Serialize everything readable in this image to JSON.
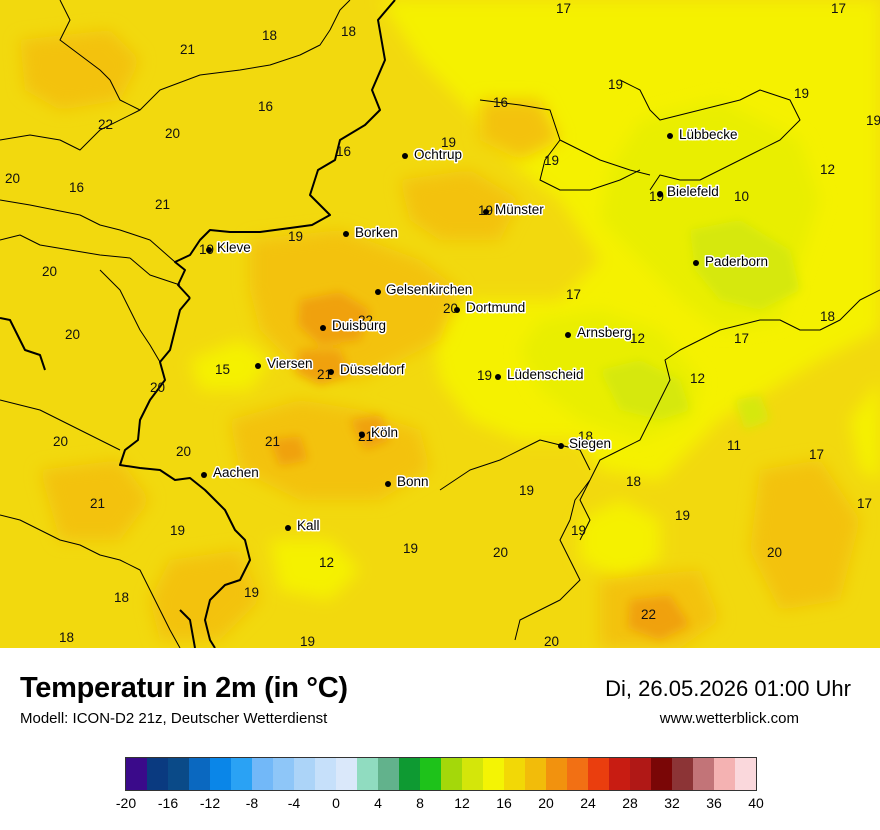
{
  "title": "Temperatur in 2m (in °C)",
  "subtitle": "Modell: ICON-D2 21z, Deutscher Wetterdienst",
  "datetime": "Di, 26.05.2026 01:00 Uhr",
  "website": "www.wetterblick.com",
  "colors": {
    "base": "#f2d90e",
    "warm": "#f3c20c",
    "hot": "#f0a10a",
    "cool": "#f5f104",
    "cooler": "#e9ee06",
    "coldest": "#d6e80a"
  },
  "cities": [
    {
      "name": "Lübbecke"
    },
    {
      "name": "Ochtrup"
    },
    {
      "name": "Bielefeld"
    },
    {
      "name": "Münster"
    },
    {
      "name": "Borken"
    },
    {
      "name": "Kleve"
    },
    {
      "name": "Paderborn"
    },
    {
      "name": "Gelsenkirchen"
    },
    {
      "name": "Dortmund"
    },
    {
      "name": "Duisburg"
    },
    {
      "name": "Arnsberg"
    },
    {
      "name": "Viersen"
    },
    {
      "name": "Düsseldorf"
    },
    {
      "name": "Lüdenscheid"
    },
    {
      "name": "Köln"
    },
    {
      "name": "Siegen"
    },
    {
      "name": "Aachen"
    },
    {
      "name": "Bonn"
    },
    {
      "name": "Kall"
    }
  ],
  "values": [
    "17",
    "17",
    "21",
    "18",
    "18",
    "19",
    "19",
    "19",
    "22",
    "16",
    "16",
    "20",
    "19",
    "19",
    "16",
    "12",
    "20",
    "16",
    "21",
    "19",
    "10",
    "19",
    "19",
    "20",
    "17",
    "20",
    "22",
    "18",
    "20",
    "12",
    "17",
    "15",
    "21",
    "19",
    "12",
    "20",
    "21",
    "18",
    "20",
    "11",
    "17",
    "21",
    "18",
    "19",
    "17",
    "19",
    "19",
    "12",
    "20",
    "20",
    "19",
    "18",
    "19",
    "22",
    "18",
    "19",
    "20"
  ],
  "legend": {
    "colors": [
      "#3a0a8a",
      "#0a3a80",
      "#0a4a88",
      "#0a68c0",
      "#0a86e8",
      "#2aa2f4",
      "#72b8f8",
      "#8ec6f8",
      "#acd4f8",
      "#c6e0fa",
      "#dae8fa",
      "#90dcc0",
      "#62b28c",
      "#0e9a32",
      "#1ec21a",
      "#a4d80a",
      "#d4e60a",
      "#f4f404",
      "#f2d806",
      "#f2bc0a",
      "#f2920e",
      "#f27014",
      "#ea3e0e",
      "#c81c12",
      "#b01816",
      "#7a0606",
      "#8c3436",
      "#c27478",
      "#f4b2b2",
      "#fad8dc"
    ],
    "ticks": [
      "-20",
      "-16",
      "-12",
      "-8",
      "-4",
      "0",
      "4",
      "8",
      "12",
      "16",
      "20",
      "24",
      "28",
      "32",
      "36",
      "40"
    ]
  }
}
